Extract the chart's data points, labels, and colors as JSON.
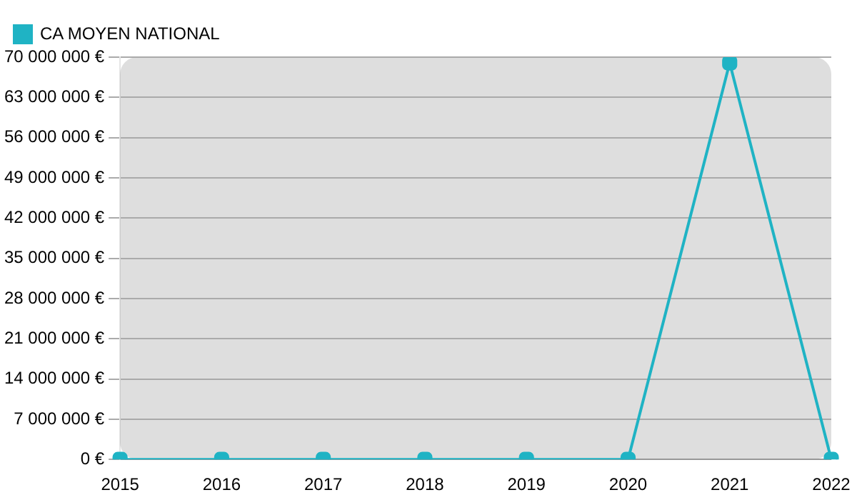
{
  "chart_data": {
    "type": "line",
    "categories": [
      "2015",
      "2016",
      "2017",
      "2018",
      "2019",
      "2020",
      "2021",
      "2022"
    ],
    "series": [
      {
        "name": "CA MOYEN NATIONAL",
        "color": "#1fb3c4",
        "values": [
          0,
          0,
          0,
          0,
          0,
          0,
          69000000,
          0
        ]
      }
    ],
    "ylim": [
      0,
      70000000
    ],
    "yticks": [
      {
        "value": 0,
        "label": "0 €"
      },
      {
        "value": 7000000,
        "label": "7 000 000 €"
      },
      {
        "value": 14000000,
        "label": "14 000 000 €"
      },
      {
        "value": 21000000,
        "label": "21 000 000 €"
      },
      {
        "value": 28000000,
        "label": "28 000 000 €"
      },
      {
        "value": 35000000,
        "label": "35 000 000 €"
      },
      {
        "value": 42000000,
        "label": "42 000 000 €"
      },
      {
        "value": 49000000,
        "label": "49 000 000 €"
      },
      {
        "value": 56000000,
        "label": "56 000 000 €"
      },
      {
        "value": 63000000,
        "label": "63 000 000 €"
      },
      {
        "value": 70000000,
        "label": "70 000 000 €"
      }
    ],
    "grid": "y",
    "legend": "top left",
    "marker": "square",
    "line_style": "solid"
  }
}
